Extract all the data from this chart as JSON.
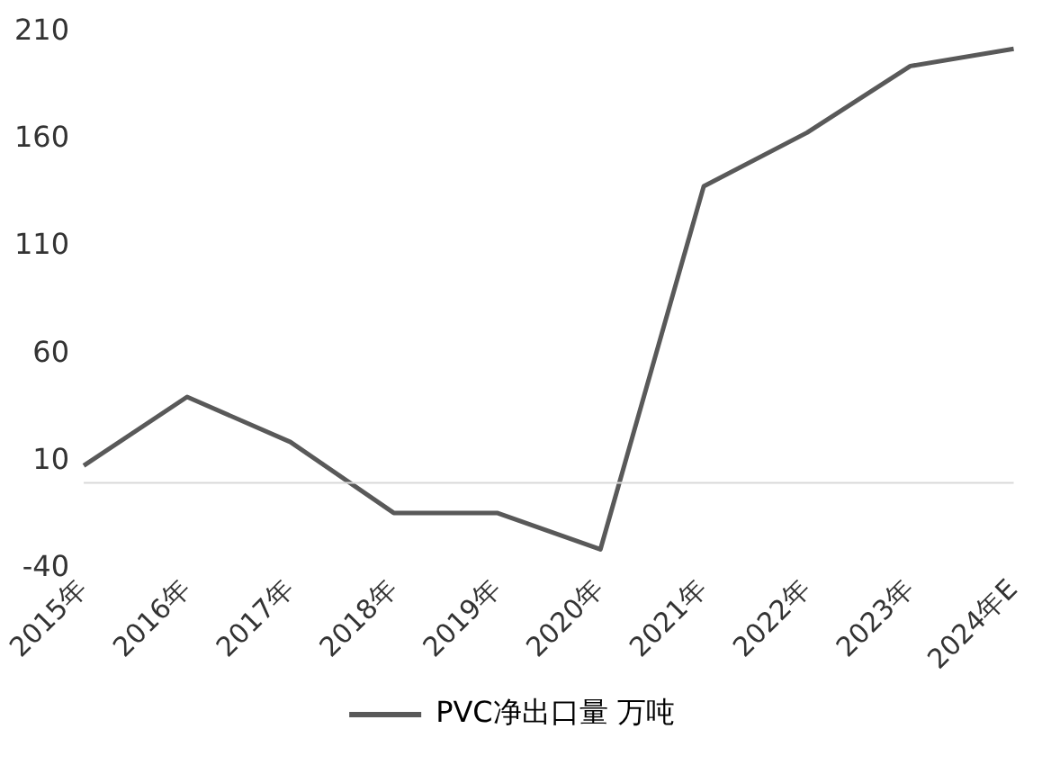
{
  "chart_data": {
    "type": "line",
    "categories": [
      "2015年",
      "2016年",
      "2017年",
      "2018年",
      "2019年",
      "2020年",
      "2021年",
      "2022年",
      "2023年",
      "2024年E"
    ],
    "series": [
      {
        "name": "PVC净出口量 万吨",
        "color": "#595959",
        "values": [
          8,
          40,
          19,
          -14,
          -14,
          -31,
          138,
          163,
          194,
          202
        ]
      }
    ],
    "ylim": [
      -40,
      210
    ],
    "yticks": [
      -40,
      10,
      60,
      110,
      160,
      210
    ],
    "grid": false,
    "legend": "bottom",
    "marker": "none",
    "line_style": "solid"
  }
}
